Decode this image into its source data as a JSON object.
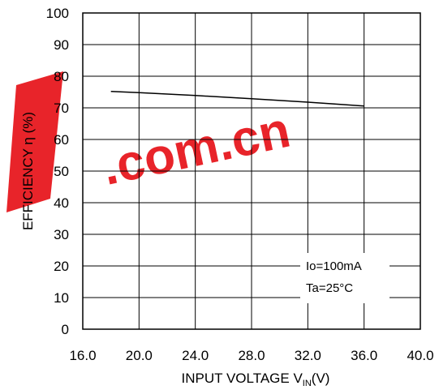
{
  "watermark": {
    "text": ".com.cn",
    "color": "#e8242a",
    "logo_color": "#e8242a"
  },
  "chart_data": {
    "type": "line",
    "title": "",
    "xlabel": "INPUT VOLTAGE V",
    "xlabel_subscript": "IN",
    "xlabel_suffix": "(V)",
    "ylabel": "EFFICIENCY η (%)",
    "xlim": [
      16.0,
      40.0
    ],
    "ylim": [
      0,
      100
    ],
    "xticks": [
      "16.0",
      "20.0",
      "24.0",
      "28.0",
      "32.0",
      "36.0",
      "40.0"
    ],
    "yticks": [
      "0",
      "10",
      "20",
      "30",
      "40",
      "50",
      "60",
      "70",
      "80",
      "90",
      "100"
    ],
    "grid": true,
    "series": [
      {
        "x": [
          18.0,
          20.0,
          24.0,
          28.0,
          32.0,
          36.0
        ],
        "y": [
          75.2,
          74.8,
          73.9,
          72.9,
          71.8,
          70.6
        ],
        "color": "#000000"
      }
    ],
    "annotations": [
      "Io=100mA",
      "Ta=25°C"
    ]
  }
}
